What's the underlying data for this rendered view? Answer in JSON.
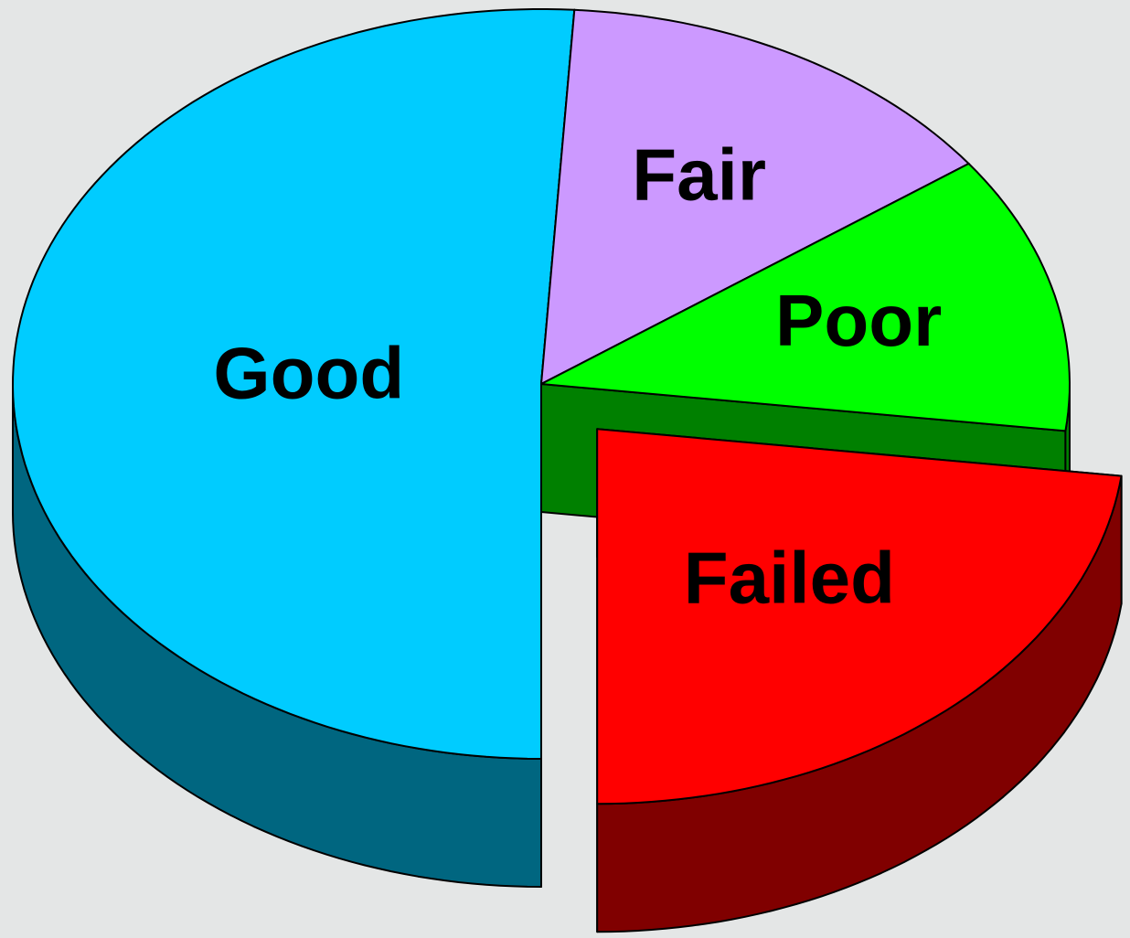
{
  "chart_data": {
    "type": "pie",
    "categories": [
      "Good",
      "Fair",
      "Poor",
      "Failed"
    ],
    "values": [
      51,
      14,
      12,
      23
    ],
    "colors": [
      "#00ccff",
      "#cc99ff",
      "#00ff00",
      "#ff0000"
    ],
    "side_colors": [
      "#006680",
      "#8866aa",
      "#008000",
      "#800000"
    ],
    "exploded": [
      false,
      false,
      false,
      true
    ],
    "three_d": true
  }
}
